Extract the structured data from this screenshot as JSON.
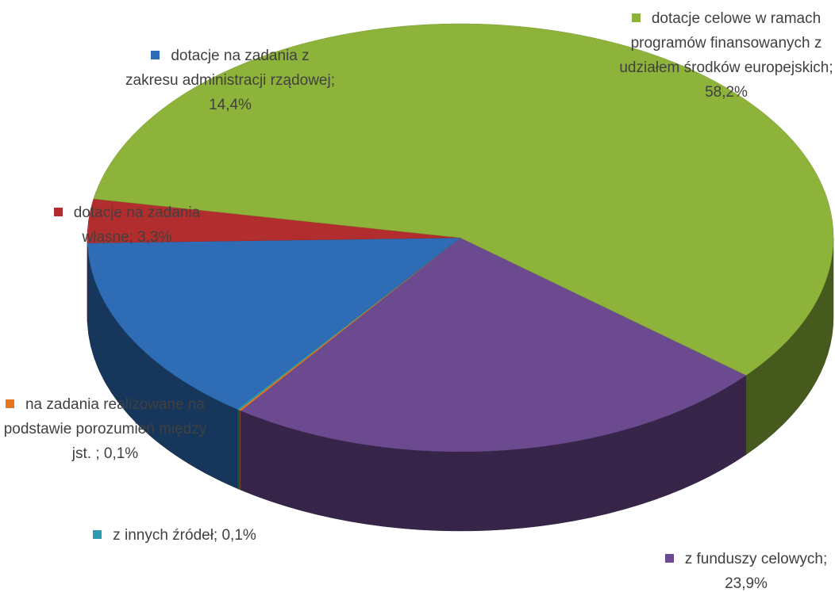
{
  "chart_data": {
    "type": "pie",
    "three_d": true,
    "categories": [
      "z funduszy celowych",
      "na zadania realizowane na podstawie porozumień między jst.",
      "z innych źródeł",
      "dotacje na zadania z zakresu administracji rządowej",
      "dotacje na zadania własne",
      "dotacje celowe w ramach programów finansowanych z udziałem środków europejskich"
    ],
    "values": [
      23.9,
      0.1,
      0.1,
      14.4,
      3.3,
      58.2
    ],
    "labels": [
      "z funduszy celowych; 23,9%",
      "na zadania realizowane na podstawie porozumień między jst. ; 0,1%",
      "z innych źródeł; 0,1%",
      "dotacje na zadania z zakresu administracji rządowej; 14,4%",
      "dotacje na zadania własne; 3,3%",
      "dotacje celowe w ramach programów finansowanych z udziałem środków europejskich; 58,2%"
    ],
    "colors": [
      "#6b4a8f",
      "#e6771e",
      "#2b9bb0",
      "#2e6cb5",
      "#b22e2e",
      "#8db33a"
    ]
  }
}
